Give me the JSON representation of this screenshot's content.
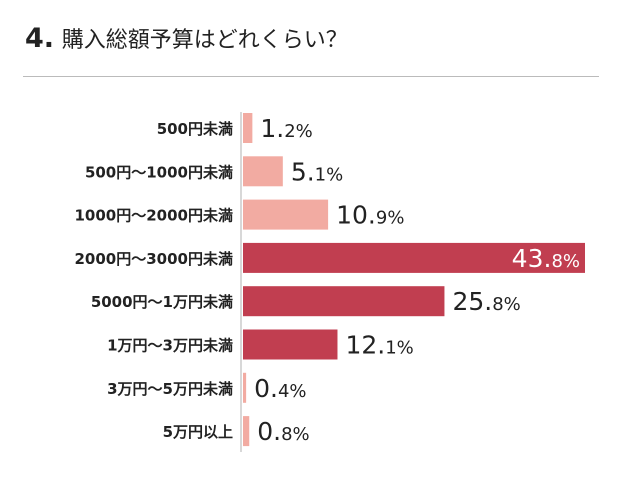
{
  "title": {
    "number": "4.",
    "text": "購入総額予算はどれくらい？"
  },
  "chart_data": {
    "type": "bar",
    "orientation": "horizontal",
    "title": "4. 購入総額予算はどれくらい？",
    "categories": [
      "500円未満",
      "500円〜1000円未満",
      "1000円〜2000円未満",
      "2000円〜3000円未満",
      "5000円〜1万円未満",
      "1万円〜3万円未満",
      "3万円〜5万円未満",
      "5万円以上"
    ],
    "values": [
      1.2,
      5.1,
      10.9,
      43.8,
      25.8,
      12.1,
      0.4,
      0.8
    ],
    "unit": "%",
    "highlight": [
      false,
      false,
      false,
      true,
      true,
      true,
      false,
      false
    ],
    "colors": {
      "normal": "#f2aba2",
      "highlight": "#c13e50",
      "label": "#222222",
      "label_inside": "#ffffff"
    },
    "xlabel": "",
    "ylabel": "",
    "xlim": [
      0,
      45
    ],
    "grid": false
  }
}
